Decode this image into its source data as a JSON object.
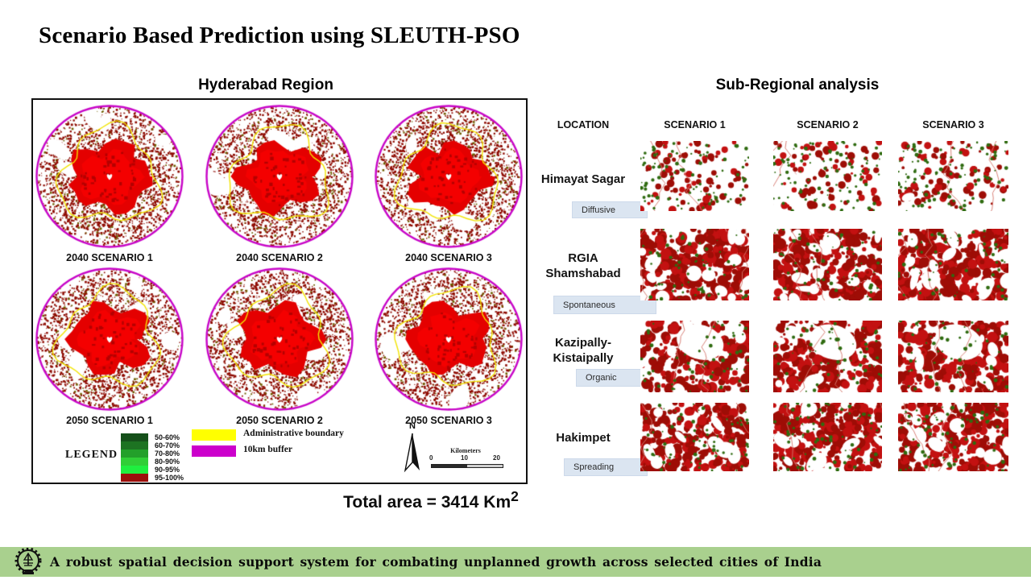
{
  "title": "Scenario Based Prediction using SLEUTH-PSO",
  "left_panel": {
    "heading": "Hyderabad Region",
    "map_labels": [
      "2040 SCENARIO 1",
      "2040 SCENARIO 2",
      "2040 SCENARIO 3",
      "2050 SCENARIO 1",
      "2050 SCENARIO 2",
      "2050 SCENARIO 3"
    ],
    "legend": {
      "title": "LEGEND",
      "classes": [
        {
          "label": "50-60%",
          "color": "#15501a"
        },
        {
          "label": "60-70%",
          "color": "#1d7322"
        },
        {
          "label": "70-80%",
          "color": "#23a02a"
        },
        {
          "label": "80-90%",
          "color": "#30cf36"
        },
        {
          "label": "90-95%",
          "color": "#1fef3f"
        },
        {
          "label": "95-100%",
          "color": "#9c100c"
        }
      ],
      "boundary_items": [
        {
          "label": "Administrative boundary",
          "color": "#ffff00"
        },
        {
          "label": "10km buffer",
          "color": "#cc00cc"
        }
      ]
    },
    "north_label": "N",
    "scalebar": {
      "title": "Kilometers",
      "ticks": [
        "0",
        "10",
        "20"
      ]
    },
    "total_area": {
      "text": "Total area = 3414 Km",
      "sup": "2"
    }
  },
  "right_panel": {
    "heading": "Sub-Regional analysis",
    "column_headers": [
      "LOCATION",
      "SCENARIO 1",
      "SCENARIO 2",
      "SCENARIO 3"
    ],
    "rows": [
      {
        "location": "Himayat Sagar",
        "growth_type": "Diffusive"
      },
      {
        "location": "RGIA Shamshabad",
        "growth_type": "Spontaneous"
      },
      {
        "location": "Kazipally-Kistaipally",
        "growth_type": "Organic"
      },
      {
        "location": "Hakimpet",
        "growth_type": "Spreading"
      }
    ]
  },
  "map_colors": {
    "urban_dark": "#8e0a00",
    "urban_bright": "#e40000",
    "vegetation_green": "#2f6b10",
    "admin_boundary_yellow": "#f2e400",
    "buffer_magenta": "#c806c8",
    "footer_green": "#a9d08e"
  },
  "footer": {
    "text": "A robust spatial decision support system for combating unplanned growth across selected  cities  of India"
  }
}
